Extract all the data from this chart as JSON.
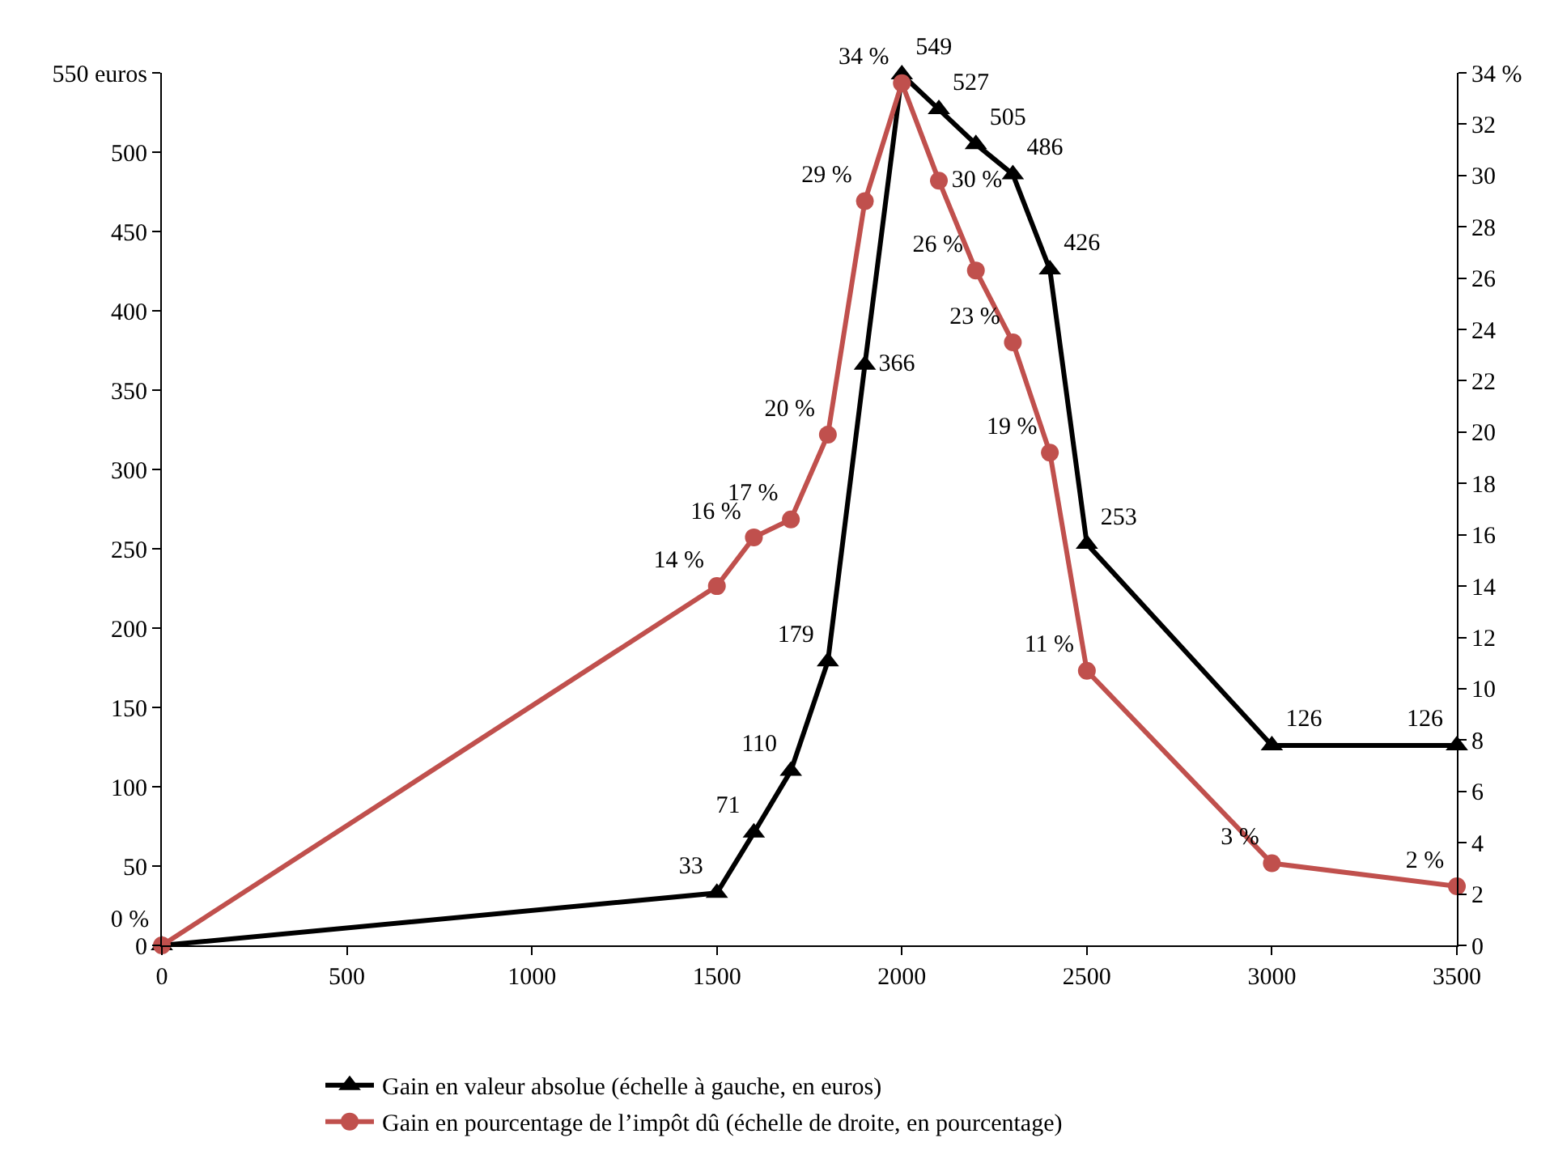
{
  "chart_data": {
    "type": "line",
    "x": [
      0,
      1500,
      1600,
      1700,
      1800,
      1900,
      2000,
      2100,
      2200,
      2300,
      2400,
      2500,
      3000,
      3500
    ],
    "series": [
      {
        "name": "Gain en valeur absolue (échelle à gauche, en euros)",
        "color": "#000000",
        "marker": "triangle",
        "values": [
          0,
          33,
          71,
          110,
          179,
          366,
          549,
          527,
          505,
          486,
          426,
          253,
          126,
          126
        ],
        "value_labels": [
          null,
          "33",
          "71",
          "110",
          "179",
          "366",
          "549",
          "527",
          "505",
          "486",
          "426",
          "253",
          "126",
          "126"
        ]
      },
      {
        "name": "Gain en pourcentage de l’impôt dû (échelle de droite, en pourcentage)",
        "color": "#c0504d",
        "marker": "circle",
        "axis": "y2",
        "values": [
          0,
          14.0,
          15.9,
          16.6,
          19.9,
          29.0,
          33.6,
          29.8,
          26.3,
          23.5,
          19.2,
          10.7,
          3.2,
          2.3
        ],
        "value_labels": [
          "0 %",
          "14 %",
          "16 %",
          "17 %",
          "20 %",
          "29 %",
          "34 %",
          "30 %",
          "26 %",
          "23 %",
          "19 %",
          "11 %",
          "3 %",
          "2 %"
        ]
      }
    ],
    "xlim": [
      0,
      3500
    ],
    "xticks": [
      0,
      500,
      1000,
      1500,
      2000,
      2500,
      3000,
      3500
    ],
    "ylim": [
      0,
      550
    ],
    "yticks": [
      0,
      50,
      100,
      150,
      200,
      250,
      300,
      350,
      400,
      450,
      500,
      {
        "value": 550,
        "label": "550 euros"
      }
    ],
    "y2lim": [
      0,
      34
    ],
    "y2ticks": [
      0,
      2,
      4,
      6,
      8,
      10,
      12,
      14,
      16,
      18,
      20,
      22,
      24,
      26,
      28,
      30,
      32,
      {
        "value": 34,
        "label": "34 %"
      }
    ],
    "legend": "bottom",
    "line_style": "solid"
  }
}
